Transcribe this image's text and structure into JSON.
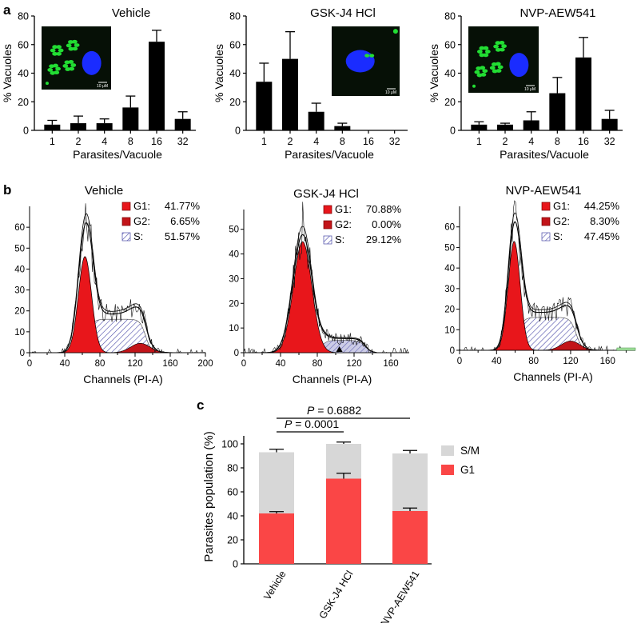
{
  "colors": {
    "bar": "#000000",
    "g1": "#e8161b",
    "g2": "#c21419",
    "s": "#8f8fc8",
    "gfp": "#22dd33",
    "nucleus": "#1a2cff",
    "sm": "#d7d7d7",
    "g1c": "#fa4646"
  },
  "panel_a": {
    "letter": "a",
    "ylabel": "% Vacuoles",
    "xlabel": "Parasites/Vacuole",
    "scale_label": "10 μM"
  },
  "panel_b": {
    "letter": "b",
    "xlabel": "Channels (PI-A)"
  },
  "panel_c": {
    "letter": "c",
    "p_label": "P",
    "p_top": " = 0.6882",
    "p_bottom": " = 0.0001"
  },
  "chart_data": [
    {
      "id": "a1",
      "type": "bar",
      "title": "Vehicle",
      "categories": [
        "1",
        "2",
        "4",
        "8",
        "16",
        "32"
      ],
      "values": [
        4,
        5,
        5,
        16,
        62,
        8
      ],
      "errors": [
        3,
        5,
        3,
        8,
        8,
        5
      ],
      "ylim": [
        0,
        80
      ],
      "yticks": [
        "0",
        "20",
        "40",
        "60",
        "80"
      ],
      "xlabel": "Parasites/Vacuole",
      "ylabel": "% Vacuoles"
    },
    {
      "id": "a2",
      "type": "bar",
      "title": "GSK-J4 HCl",
      "categories": [
        "1",
        "2",
        "4",
        "8",
        "16",
        "32"
      ],
      "values": [
        34,
        50,
        13,
        3,
        0,
        0
      ],
      "errors": [
        13,
        19,
        6,
        2,
        0,
        0
      ],
      "ylim": [
        0,
        80
      ],
      "yticks": [
        "0",
        "20",
        "40",
        "60",
        "80"
      ],
      "xlabel": "Parasites/Vacuole",
      "ylabel": "% Vacuoles"
    },
    {
      "id": "a3",
      "type": "bar",
      "title": "NVP-AEW541",
      "categories": [
        "1",
        "2",
        "4",
        "8",
        "16",
        "32"
      ],
      "values": [
        4,
        4,
        7,
        26,
        51,
        8
      ],
      "errors": [
        2,
        1,
        6,
        11,
        14,
        6
      ],
      "ylim": [
        0,
        80
      ],
      "yticks": [
        "0",
        "20",
        "40",
        "60",
        "80"
      ],
      "xlabel": "Parasites/Vacuole",
      "ylabel": "% Vacuoles"
    },
    {
      "id": "b1",
      "type": "area",
      "title": "Vehicle",
      "xlim": [
        0,
        200
      ],
      "ylim": [
        0,
        70
      ],
      "xticks": [
        "0",
        "20",
        "40",
        "60",
        "80",
        "100",
        "120",
        "140",
        "160",
        "180",
        "200"
      ],
      "yticks": [
        "0",
        "10",
        "20",
        "30",
        "40",
        "50",
        "60"
      ],
      "legend": [
        {
          "label": "G1:",
          "value": "41.77%"
        },
        {
          "label": "G2:",
          "value": "6.65%"
        },
        {
          "label": "S:",
          "value": "51.57%"
        }
      ],
      "g1": {
        "mean": 63,
        "sd": 7.5,
        "peak": 46
      },
      "g2": {
        "mean": 126,
        "sd": 11,
        "peak": 4.5
      },
      "s": {
        "start": 60,
        "end": 132,
        "height": 16
      },
      "raw_peak": 61,
      "xlabel": "Channels (PI-A)"
    },
    {
      "id": "b2",
      "type": "area",
      "title": "GSK-J4 HCl",
      "xlim": [
        0,
        180
      ],
      "ylim": [
        0,
        58
      ],
      "xticks": [
        "0",
        "20",
        "40",
        "60",
        "80",
        "100",
        "120",
        "140",
        "160"
      ],
      "yticks": [
        "0",
        "10",
        "20",
        "30",
        "40",
        "50"
      ],
      "legend": [
        {
          "label": "G1:",
          "value": "70.88%"
        },
        {
          "label": "G2:",
          "value": "0.00%"
        },
        {
          "label": "S:",
          "value": "29.12%"
        }
      ],
      "g1": {
        "mean": 64,
        "sd": 10,
        "peak": 45
      },
      "g2": {
        "mean": 130,
        "sd": 8,
        "peak": 0
      },
      "s": {
        "start": 78,
        "end": 132,
        "height": 5
      },
      "raw_peak": 52,
      "xlabel": "Channels (PI-A)"
    },
    {
      "id": "b3",
      "type": "area",
      "title": "NVP-AEW541",
      "xlim": [
        0,
        190
      ],
      "ylim": [
        0,
        70
      ],
      "xticks": [
        "0",
        "20",
        "40",
        "60",
        "80",
        "100",
        "120",
        "140",
        "160",
        "180"
      ],
      "yticks": [
        "0",
        "10",
        "20",
        "30",
        "40",
        "50",
        "60"
      ],
      "legend": [
        {
          "label": "G1:",
          "value": "44.25%"
        },
        {
          "label": "G2:",
          "value": "8.30%"
        },
        {
          "label": "S:",
          "value": "47.45%"
        }
      ],
      "g1": {
        "mean": 59,
        "sd": 6.5,
        "peak": 53
      },
      "g2": {
        "mean": 120,
        "sd": 10,
        "peak": 4.5
      },
      "s": {
        "start": 57,
        "end": 126,
        "height": 16
      },
      "raw_peak": 63,
      "xlabel": "Channels (PI-A)"
    },
    {
      "id": "c",
      "type": "bar",
      "stacked": true,
      "categories": [
        "Vehicle",
        "GSK-J4 HCl",
        "NVP-AEW541"
      ],
      "series": [
        {
          "name": "G1",
          "values": [
            42,
            71,
            44
          ],
          "errors": [
            1.5,
            4.5,
            2.5
          ]
        },
        {
          "name": "S/M",
          "values": [
            51,
            29,
            48
          ],
          "errors": [
            2.5,
            1.5,
            2.5
          ]
        }
      ],
      "ylim": [
        0,
        110
      ],
      "yticks": [
        "0",
        "20",
        "40",
        "60",
        "80",
        "100"
      ],
      "ylabel": "Parasites population (%)",
      "legend": [
        "S/M",
        "G1"
      ]
    }
  ]
}
